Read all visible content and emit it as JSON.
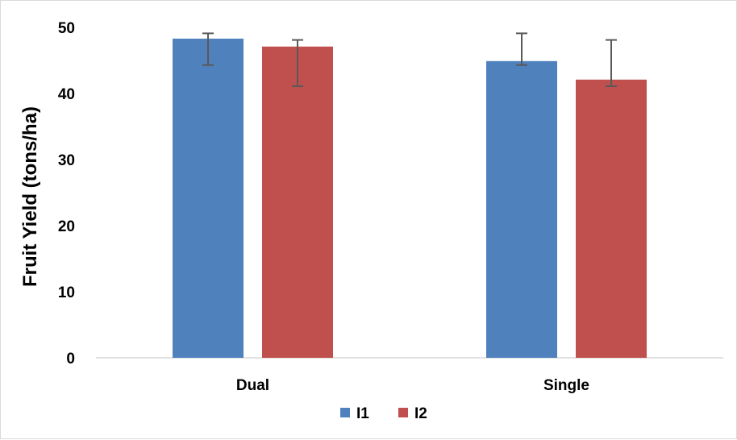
{
  "chart_data": {
    "type": "bar",
    "title": "",
    "xlabel": "",
    "ylabel": "Fruit Yield (tons/ha)",
    "ylim": [
      0,
      50
    ],
    "yticks": [
      0,
      10,
      20,
      30,
      40,
      50
    ],
    "grid": false,
    "legend_position": "bottom",
    "categories": [
      "Dual",
      "Single"
    ],
    "series": [
      {
        "name": "I1",
        "color": "#4F81BD",
        "values": [
          48.3,
          44.9
        ],
        "error_low": [
          44.3,
          44.3
        ],
        "error_high": [
          49.1,
          49.1
        ]
      },
      {
        "name": "I2",
        "color": "#C0504D",
        "values": [
          47.1,
          42.1
        ],
        "error_low": [
          41.1,
          41.1
        ],
        "error_high": [
          48.1,
          48.1
        ]
      }
    ]
  }
}
